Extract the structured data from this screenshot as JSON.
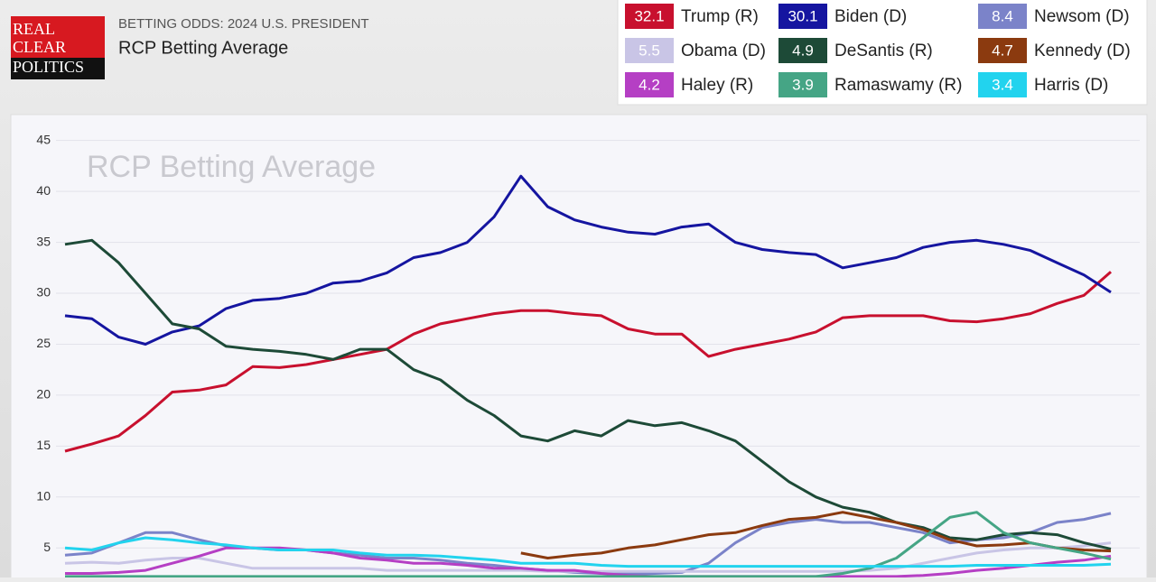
{
  "header": {
    "logo": [
      "REAL",
      "CLEAR",
      "POLITICS"
    ],
    "kicker": "BETTING ODDS: 2024 U.S. PRESIDENT",
    "title": "RCP Betting Average"
  },
  "chart_data": {
    "type": "line",
    "title": "RCP Betting Average",
    "ylim": [
      2.1,
      46.3
    ],
    "yticks": [
      5,
      10,
      15,
      20,
      25,
      30,
      35,
      40,
      45
    ],
    "grid": true,
    "series": [
      {
        "name": "Trump (R)",
        "current": 32.1,
        "color": "#c8102e",
        "values": [
          14.5,
          15.2,
          16,
          18,
          20.3,
          20.5,
          21,
          22.8,
          22.7,
          23,
          23.5,
          24,
          24.5,
          26,
          27,
          27.5,
          28,
          28.3,
          28.3,
          28,
          27.8,
          26.5,
          26,
          26,
          23.8,
          24.5,
          25,
          25.5,
          26.2,
          27.6,
          27.8,
          27.8,
          27.8,
          27.3,
          27.2,
          27.5,
          28,
          29,
          29.8,
          32.1
        ]
      },
      {
        "name": "Biden (D)",
        "current": 30.1,
        "color": "#1515a0",
        "values": [
          27.8,
          27.5,
          25.7,
          25,
          26.2,
          26.8,
          28.5,
          29.3,
          29.5,
          30,
          31,
          31.2,
          32,
          33.5,
          34,
          35,
          37.5,
          41.5,
          38.5,
          37.2,
          36.5,
          36,
          35.8,
          36.5,
          36.8,
          35,
          34.3,
          34,
          33.8,
          32.5,
          33,
          33.5,
          34.5,
          35,
          35.2,
          34.8,
          34.2,
          33,
          31.8,
          30.1
        ]
      },
      {
        "name": "Newsom (D)",
        "current": 8.4,
        "color": "#7b83c9",
        "values": [
          4.3,
          4.5,
          5.5,
          6.5,
          6.5,
          5.8,
          5.2,
          5,
          4.8,
          4.8,
          4.5,
          4.3,
          4,
          4,
          3.8,
          3.5,
          3.3,
          3,
          2.8,
          2.6,
          2.5,
          2.5,
          2.5,
          2.6,
          3.5,
          5.5,
          7,
          7.5,
          7.8,
          7.5,
          7.5,
          7,
          6.5,
          5.5,
          5.8,
          6,
          6.5,
          7.5,
          7.8,
          8.4
        ]
      },
      {
        "name": "Obama (D)",
        "current": 5.5,
        "color": "#c9c5e6",
        "values": [
          3.5,
          3.6,
          3.5,
          3.8,
          4,
          4,
          3.5,
          3,
          3,
          3,
          3,
          3,
          2.8,
          2.8,
          2.8,
          2.8,
          2.8,
          2.8,
          2.7,
          2.7,
          2.7,
          2.7,
          2.7,
          2.7,
          2.7,
          2.7,
          2.7,
          2.7,
          2.7,
          2.7,
          2.8,
          3,
          3.5,
          4,
          4.5,
          4.8,
          5,
          5,
          5.2,
          5.5
        ]
      },
      {
        "name": "DeSantis (R)",
        "current": 4.9,
        "color": "#1d4a37",
        "values": [
          34.8,
          35.2,
          33,
          30,
          27,
          26.5,
          24.8,
          24.5,
          24.3,
          24,
          23.5,
          24.5,
          24.5,
          22.5,
          21.5,
          19.5,
          18,
          16,
          15.5,
          16.5,
          16,
          17.5,
          17,
          17.3,
          16.5,
          15.5,
          13.5,
          11.5,
          10,
          9,
          8.5,
          7.5,
          7,
          6,
          5.8,
          6.3,
          6.5,
          6.3,
          5.5,
          4.9
        ]
      },
      {
        "name": "Kennedy (D)",
        "current": 4.7,
        "color": "#8b3a0f",
        "values": [
          null,
          null,
          null,
          null,
          null,
          null,
          null,
          null,
          null,
          null,
          null,
          null,
          null,
          null,
          null,
          null,
          null,
          4.5,
          4,
          4.3,
          4.5,
          5,
          5.3,
          5.8,
          6.3,
          6.5,
          7.2,
          7.8,
          8,
          8.5,
          8,
          7.5,
          6.8,
          5.8,
          5.2,
          5.3,
          5.5,
          5,
          4.8,
          4.7
        ]
      },
      {
        "name": "Haley (R)",
        "current": 4.2,
        "color": "#b53fc4",
        "values": [
          2.5,
          2.5,
          2.6,
          2.8,
          3.5,
          4.2,
          5,
          5,
          5,
          4.8,
          4.5,
          4,
          3.8,
          3.5,
          3.5,
          3.3,
          3,
          3,
          2.8,
          2.8,
          2.5,
          2.3,
          2.2,
          2.2,
          2.2,
          2.2,
          2.2,
          2.2,
          2.2,
          2.2,
          2.2,
          2.2,
          2.3,
          2.5,
          2.8,
          3,
          3.3,
          3.6,
          3.8,
          4.2
        ]
      },
      {
        "name": "Ramaswamy (R)",
        "current": 3.9,
        "color": "#45a585",
        "values": [
          2.2,
          2.2,
          2.2,
          2.2,
          2.2,
          2.2,
          2.2,
          2.2,
          2.2,
          2.2,
          2.2,
          2.2,
          2.2,
          2.2,
          2.2,
          2.2,
          2.2,
          2.2,
          2.2,
          2.2,
          2.2,
          2.2,
          2.2,
          2.2,
          2.2,
          2.2,
          2.2,
          2.2,
          2.2,
          2.5,
          3,
          4,
          6,
          8,
          8.5,
          6.5,
          5.5,
          5,
          4.5,
          3.9
        ]
      },
      {
        "name": "Harris (D)",
        "current": 3.4,
        "color": "#22d3ee",
        "values": [
          5,
          4.8,
          5.5,
          6,
          5.8,
          5.5,
          5.3,
          5,
          4.8,
          4.8,
          4.8,
          4.5,
          4.3,
          4.3,
          4.2,
          4,
          3.8,
          3.5,
          3.5,
          3.5,
          3.3,
          3.2,
          3.2,
          3.2,
          3.2,
          3.2,
          3.2,
          3.2,
          3.2,
          3.2,
          3.2,
          3.2,
          3.2,
          3.2,
          3.3,
          3.3,
          3.3,
          3.3,
          3.3,
          3.4
        ]
      }
    ]
  }
}
